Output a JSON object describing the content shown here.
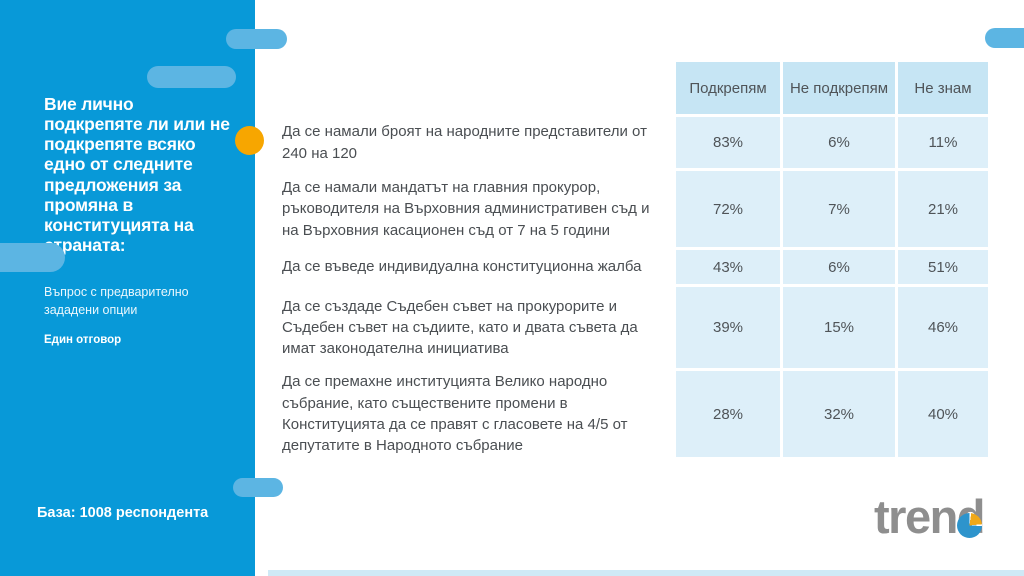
{
  "sidebar": {
    "title": "Вие лично подкрепяте ли или не подкрепяте всяко едно от следните предложения за промяна в конституцията на страната:",
    "subtitle": "Въпрос с предварително зададени опции",
    "note": "Един отговор",
    "base": "База: 1008 респондента"
  },
  "chart_data": {
    "type": "table",
    "columns": [
      "Подкрепям",
      "Не подкрепям",
      "Не знам"
    ],
    "rows": [
      {
        "label": "Да се намали броят на народните представители от 240 на 120",
        "values": [
          "83%",
          "6%",
          "11%"
        ]
      },
      {
        "label": "Да се намали мандатът на главния прокурор, ръководителя на Върховния административен съд и на Върховния касационен съд от 7 на 5 години",
        "values": [
          "72%",
          "7%",
          "21%"
        ]
      },
      {
        "label": "Да се въведе индивидуална конституционна жалба",
        "values": [
          "43%",
          "6%",
          "51%"
        ]
      },
      {
        "label": "Да се създаде Съдебен съвет на прокурорите и Съдебен съвет на съдиите, като и двата съвета да имат законодателна инициатива",
        "values": [
          "39%",
          "15%",
          "46%"
        ]
      },
      {
        "label": "Да се премахне институцията Велико народно събрание, като съществените промени в Конституцията да се правят с гласовете на 4/5 от депутатите в Народното събрание",
        "values": [
          "28%",
          "32%",
          "40%"
        ]
      }
    ]
  },
  "logo": {
    "text": "trend"
  },
  "colors": {
    "sidebar": "#0899d8",
    "pill": "#5cb5e3",
    "accent_orange": "#f7a600",
    "table_header_bg": "#c6e5f4",
    "table_cell_bg": "#ddeff9",
    "table_text": "#4f5458",
    "logo_gray": "#8e8e8e",
    "pie_blue": "#2d94cc",
    "pie_orange": "#f0a818"
  }
}
